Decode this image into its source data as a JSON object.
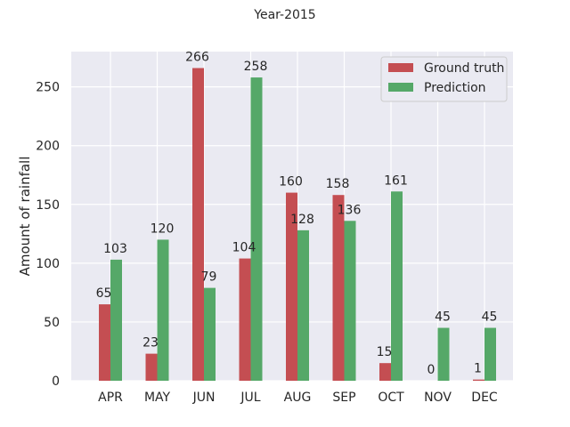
{
  "chart_data": {
    "type": "bar",
    "title": "Year-2015",
    "xlabel": "",
    "ylabel": "Amount of rainfall",
    "categories": [
      "APR",
      "MAY",
      "JUN",
      "JUL",
      "AUG",
      "SEP",
      "OCT",
      "NOV",
      "DEC"
    ],
    "series": [
      {
        "name": "Ground truth",
        "color": "#c44e52",
        "values": [
          65,
          23,
          266,
          104,
          160,
          158,
          15,
          0,
          1
        ]
      },
      {
        "name": "Prediction",
        "color": "#55a868",
        "values": [
          103,
          120,
          79,
          258,
          128,
          136,
          161,
          45,
          45
        ]
      }
    ],
    "ylim": [
      0,
      280
    ],
    "yticks": [
      0,
      50,
      100,
      150,
      200,
      250
    ],
    "grid": true,
    "legend_position": "top-right",
    "background": "#eaeaf2"
  }
}
